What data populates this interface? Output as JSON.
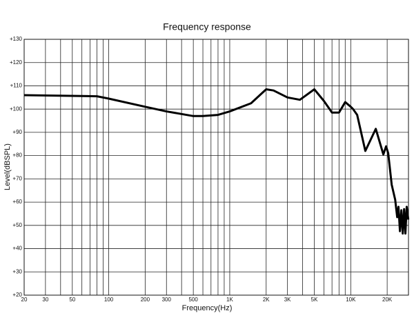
{
  "chart_data": {
    "type": "line",
    "title": "Frequency response",
    "x_label": "Frequency(Hz)",
    "y_label": "Level(dBSPL)",
    "log_x": true,
    "grid": true,
    "color": "#000000",
    "xlim": [
      20,
      30000
    ],
    "ylim": [
      20,
      130
    ],
    "xticks": [
      20,
      30,
      50,
      100,
      200,
      300,
      500,
      {
        "value": 1000,
        "label": "1K"
      },
      {
        "value": 2000,
        "label": "2K"
      },
      {
        "value": 3000,
        "label": "3K"
      },
      {
        "value": 5000,
        "label": "5K"
      },
      {
        "value": 10000,
        "label": "10K"
      },
      {
        "value": 20000,
        "label": "20K"
      }
    ],
    "xgrid": [
      40,
      60,
      70,
      80,
      90,
      400,
      600,
      700,
      800,
      900,
      4000,
      6000,
      7000,
      8000,
      9000
    ],
    "yticks": [
      {
        "value": 20,
        "label": "+20"
      },
      {
        "value": 30,
        "label": "+30"
      },
      {
        "value": 40,
        "label": "+40"
      },
      {
        "value": 50,
        "label": "+50"
      },
      {
        "value": 60,
        "label": "+60"
      },
      {
        "value": 70,
        "label": "+70"
      },
      {
        "value": 80,
        "label": "+80"
      },
      {
        "value": 90,
        "label": "+90"
      },
      {
        "value": 100,
        "label": "+100"
      },
      {
        "value": 110,
        "label": "+110"
      },
      {
        "value": 120,
        "label": "+120"
      },
      {
        "value": 130,
        "label": "+130"
      }
    ],
    "x": [
      20,
      80,
      100,
      200,
      300,
      500,
      600,
      800,
      1000,
      1500,
      2000,
      2300,
      3000,
      3800,
      5000,
      6000,
      7000,
      8000,
      9000,
      10000,
      10450,
      11300,
      13200,
      16100,
      18600,
      19600,
      20400,
      21800,
      23300,
      24200,
      24800,
      25500,
      26200,
      26900,
      27600,
      28300,
      29000,
      29900
    ],
    "values": [
      106,
      105.5,
      104.5,
      101,
      99,
      97,
      97,
      97.5,
      99,
      102.5,
      108.5,
      108,
      105,
      104,
      108.5,
      103.5,
      98.5,
      98.5,
      103,
      101,
      100,
      97.5,
      82,
      91.5,
      80.5,
      84,
      81,
      67.5,
      61,
      53.5,
      58,
      47.5,
      56.5,
      46.5,
      57,
      46.5,
      58,
      52.5
    ]
  }
}
